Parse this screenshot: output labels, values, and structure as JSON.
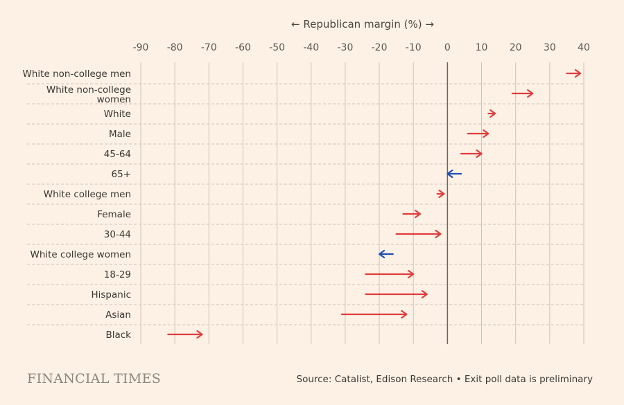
{
  "chart_data": {
    "type": "arrow",
    "axis_title": "← Republican margin (%) →",
    "xlim": [
      -90,
      40
    ],
    "x_ticks": [
      -90,
      -80,
      -70,
      -60,
      -50,
      -40,
      -30,
      -20,
      -10,
      0,
      10,
      20,
      30,
      40
    ],
    "grid": "vertical solid, horizontal dashed",
    "colors": {
      "shift_right": "#e03c3e",
      "shift_left": "#1f4fb4",
      "zero_line": "#6b6562",
      "grid": "#cdc3b7"
    },
    "categories": [
      {
        "label": "White non-college men",
        "from": 35,
        "to": 39
      },
      {
        "label": "White non-college women",
        "from": 19,
        "to": 25
      },
      {
        "label": "White",
        "from": 12,
        "to": 14
      },
      {
        "label": "Male",
        "from": 6,
        "to": 12
      },
      {
        "label": "45-64",
        "from": 4,
        "to": 10
      },
      {
        "label": "65+",
        "from": 4,
        "to": 0
      },
      {
        "label": "White college men",
        "from": -3,
        "to": -1
      },
      {
        "label": "Female",
        "from": -13,
        "to": -8
      },
      {
        "label": "30-44",
        "from": -15,
        "to": -2
      },
      {
        "label": "White college women",
        "from": -16,
        "to": -20
      },
      {
        "label": "18-29",
        "from": -24,
        "to": -10
      },
      {
        "label": "Hispanic",
        "from": -24,
        "to": -6
      },
      {
        "label": "Asian",
        "from": -31,
        "to": -12
      },
      {
        "label": "Black",
        "from": -82,
        "to": -72
      }
    ]
  },
  "footer": {
    "brand": "FINANCIAL TIMES",
    "source": "Source: Catalist, Edison Research • Exit poll data is preliminary"
  }
}
